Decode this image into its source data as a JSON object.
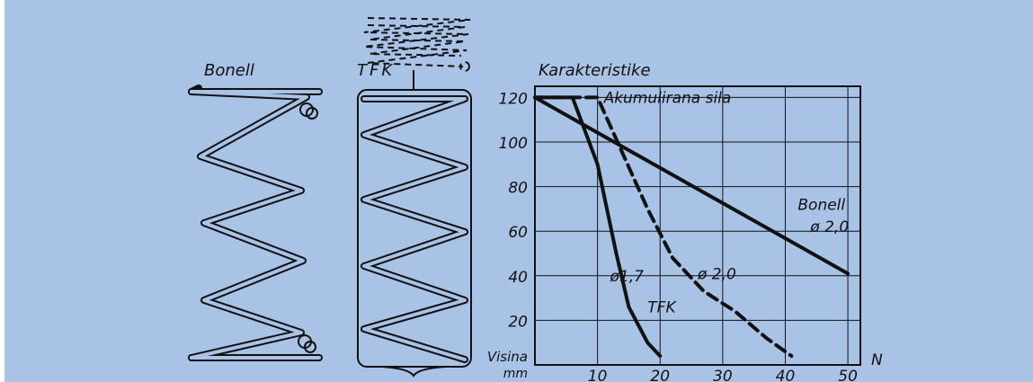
{
  "colors": {
    "background": "#a9c3e6",
    "ink": "#111111"
  },
  "labels": {
    "bonell": "Bonell",
    "tfk": "TFK",
    "chart_title": "Karakteristike"
  },
  "chart_data": {
    "type": "line",
    "title": "Karakteristike",
    "ylabel": "Visina mm",
    "xlabel": "N",
    "xlim": [
      0,
      52
    ],
    "ylim": [
      0,
      125
    ],
    "x_ticks": [
      "10",
      "20",
      "30",
      "40",
      "50"
    ],
    "y_ticks": [
      "20",
      "40",
      "60",
      "80",
      "100",
      "120"
    ],
    "grid": true,
    "series": [
      {
        "style": "solid",
        "points": [
          [
            0,
            120
          ],
          [
            50,
            41
          ]
        ]
      },
      {
        "style": "solid",
        "points": [
          [
            0,
            120
          ],
          [
            6,
            120
          ],
          [
            10,
            90
          ],
          [
            13,
            50
          ],
          [
            15,
            26
          ],
          [
            18,
            10
          ],
          [
            20,
            4
          ]
        ]
      },
      {
        "style": "dashed",
        "points": [
          [
            0,
            120
          ],
          [
            10,
            120
          ],
          [
            14,
            95
          ],
          [
            18,
            70
          ],
          [
            22,
            48
          ],
          [
            27,
            33
          ],
          [
            32,
            24
          ],
          [
            37,
            12
          ],
          [
            41,
            4
          ]
        ]
      }
    ],
    "annotations": [
      {
        "text": "Akumulirana sila",
        "x": 11,
        "y": 120
      },
      {
        "text": "Bonell",
        "x": 42,
        "y": 72
      },
      {
        "text": "ø 2,0",
        "x": 44,
        "y": 62
      },
      {
        "text": "ø1,7",
        "x": 12,
        "y": 40
      },
      {
        "text": "ø 2,0",
        "x": 26,
        "y": 41
      },
      {
        "text": "TFK",
        "x": 18,
        "y": 26
      }
    ]
  }
}
